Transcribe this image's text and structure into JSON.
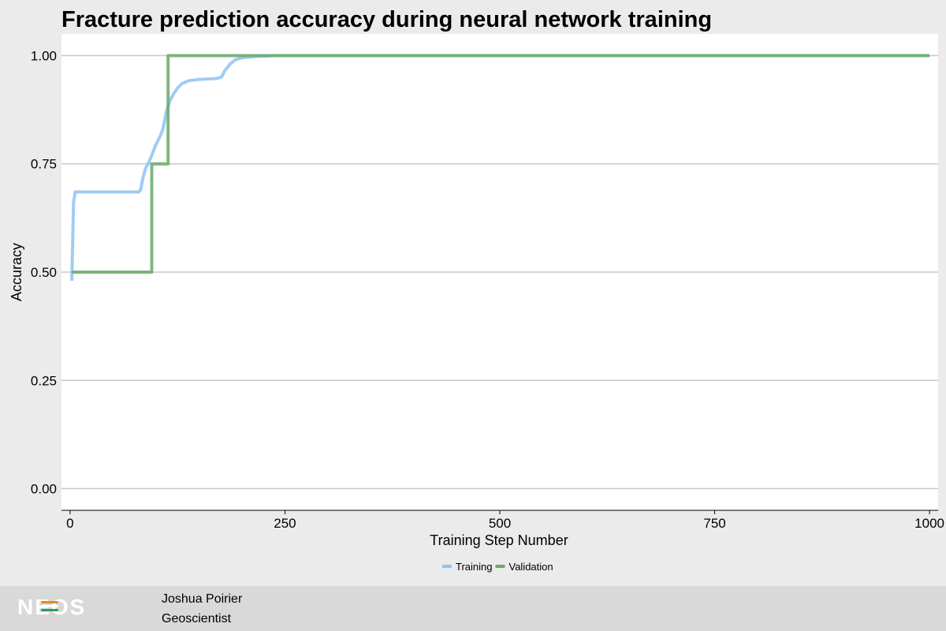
{
  "chart_data": {
    "type": "line",
    "title": "Fracture prediction accuracy during neural network training",
    "xlabel": "Training Step Number",
    "ylabel": "Accuracy",
    "xlim": [
      -10,
      1010
    ],
    "ylim": [
      -0.05,
      1.05
    ],
    "x_ticks": [
      0,
      250,
      500,
      750,
      1000
    ],
    "x_tick_labels": [
      "0",
      "250",
      "500",
      "750",
      "1000"
    ],
    "y_ticks": [
      0,
      0.25,
      0.5,
      0.75,
      1
    ],
    "y_tick_labels": [
      "0.00",
      "0.25",
      "0.50",
      "0.75",
      "1.00"
    ],
    "grid": "horizontal",
    "legend_position": "bottom",
    "series": [
      {
        "name": "Training",
        "color": "#8ec3f5",
        "points": [
          [
            2,
            0.48
          ],
          [
            3,
            0.57
          ],
          [
            4,
            0.66
          ],
          [
            6,
            0.685
          ],
          [
            10,
            0.685
          ],
          [
            40,
            0.685
          ],
          [
            80,
            0.685
          ],
          [
            82,
            0.69
          ],
          [
            85,
            0.72
          ],
          [
            88,
            0.74
          ],
          [
            92,
            0.755
          ],
          [
            96,
            0.775
          ],
          [
            100,
            0.795
          ],
          [
            105,
            0.815
          ],
          [
            108,
            0.83
          ],
          [
            112,
            0.87
          ],
          [
            116,
            0.895
          ],
          [
            120,
            0.91
          ],
          [
            125,
            0.925
          ],
          [
            130,
            0.935
          ],
          [
            138,
            0.942
          ],
          [
            150,
            0.945
          ],
          [
            170,
            0.947
          ],
          [
            176,
            0.95
          ],
          [
            180,
            0.965
          ],
          [
            186,
            0.98
          ],
          [
            192,
            0.99
          ],
          [
            200,
            0.995
          ],
          [
            215,
            0.998
          ],
          [
            240,
            1.0
          ],
          [
            1000,
            1.0
          ]
        ]
      },
      {
        "name": "Validation",
        "color": "#6aaa6a",
        "points": [
          [
            2,
            0.5
          ],
          [
            95,
            0.5
          ],
          [
            95,
            0.75
          ],
          [
            114,
            0.75
          ],
          [
            114,
            1.0
          ],
          [
            1000,
            1.0
          ]
        ]
      }
    ]
  },
  "footer": {
    "logo_text": "NEOS",
    "logo_stripe_colors": [
      "#e08a2c",
      "#ffffff",
      "#2e9e5b"
    ],
    "name": "Joshua Poirier",
    "role": "Geoscientist"
  }
}
